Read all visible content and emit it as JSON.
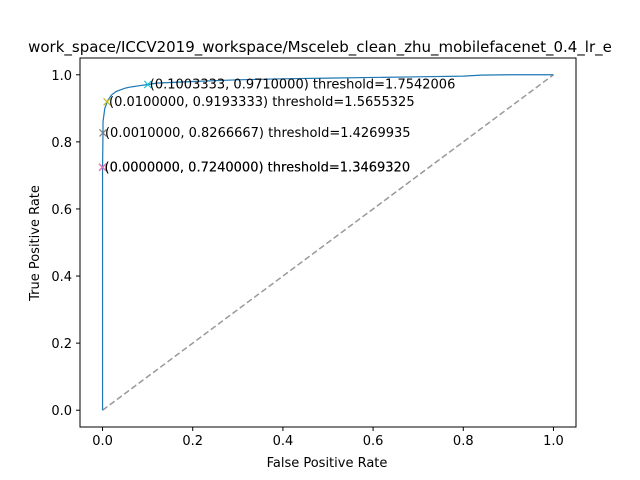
{
  "chart_data": {
    "type": "line",
    "title": "work_space/ICCV2019_workspace/Msceleb_clean_zhu_mobilefacenet_0.4_lr_e",
    "xlabel": "False Positive Rate",
    "ylabel": "True Positive Rate",
    "xlim": [
      -0.05,
      1.05
    ],
    "ylim": [
      -0.05,
      1.05
    ],
    "xticks": [
      "0.0",
      "0.2",
      "0.4",
      "0.6",
      "0.8",
      "1.0"
    ],
    "yticks": [
      "0.0",
      "0.2",
      "0.4",
      "0.6",
      "0.8",
      "1.0"
    ],
    "grid": false,
    "colors": {
      "roc": "#1f77b4",
      "diagonal": "#999999"
    },
    "roc_curve": {
      "x": [
        0,
        0,
        0.001,
        0.001,
        0.003,
        0.005,
        0.008,
        0.01,
        0.015,
        0.02,
        0.03,
        0.04,
        0.05,
        0.06,
        0.07,
        0.08,
        0.1003333,
        0.12,
        0.15,
        0.2,
        0.3,
        0.4,
        0.5,
        0.6,
        0.7,
        0.8,
        0.84,
        0.9,
        1.0
      ],
      "y": [
        0,
        0.724,
        0.8266667,
        0.86,
        0.88,
        0.9,
        0.91,
        0.9193333,
        0.93,
        0.94,
        0.95,
        0.955,
        0.96,
        0.963,
        0.965,
        0.967,
        0.971,
        0.975,
        0.977,
        0.98,
        0.985,
        0.988,
        0.99,
        0.992,
        0.994,
        0.996,
        0.999,
        1.0,
        1.0
      ]
    },
    "diagonal": {
      "x": [
        0,
        1
      ],
      "y": [
        0,
        1
      ]
    },
    "points": [
      {
        "x": 0.0,
        "y": 0.724,
        "color": "#d62728",
        "label": "(0.0000000, 0.7240000) threshold=1.3469320"
      },
      {
        "x": 0.0,
        "y": 0.724,
        "color": "#e377c2",
        "label": "(0.0000000, 0.7240000) threshold=1.3469320"
      },
      {
        "x": 0.001,
        "y": 0.8266667,
        "color": "#7f7f7f",
        "label": "(0.0010000, 0.8266667) threshold=1.4269935"
      },
      {
        "x": 0.01,
        "y": 0.9193333,
        "color": "#bcbd22",
        "label": "(0.0100000, 0.9193333) threshold=1.5655325"
      },
      {
        "x": 0.1003333,
        "y": 0.971,
        "color": "#17becf",
        "label": "(0.1003333, 0.9710000) threshold=1.7542006"
      }
    ]
  }
}
